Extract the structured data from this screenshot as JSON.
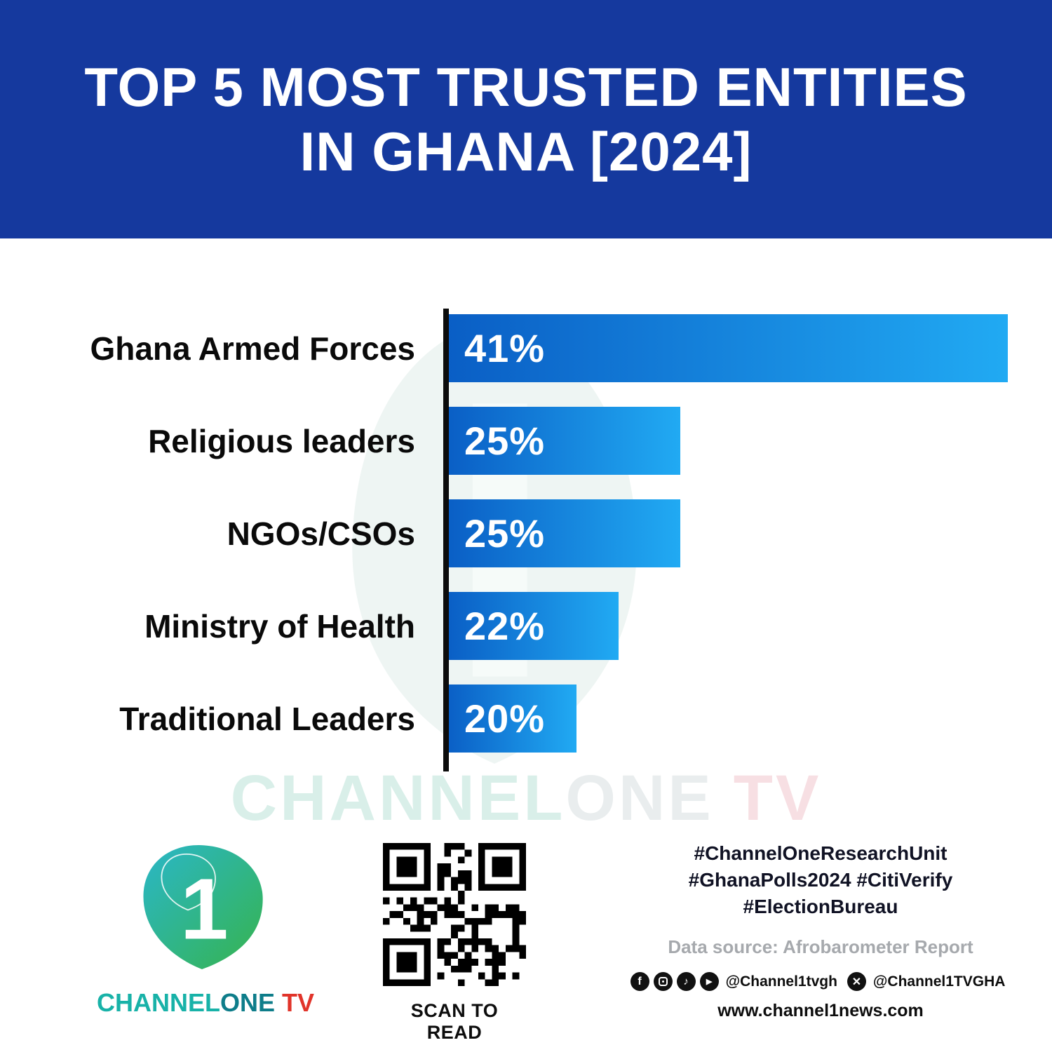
{
  "header": {
    "title_line1": "TOP 5 MOST TRUSTED ENTITIES",
    "title_line2": "IN GHANA [2024]"
  },
  "chart_data": {
    "type": "bar",
    "orientation": "horizontal",
    "title": "TOP 5 MOST TRUSTED ENTITIES IN GHANA [2024]",
    "categories": [
      "Ghana Armed Forces",
      "Religious leaders",
      "NGOs/CSOs",
      "Ministry of Health",
      "Traditional Leaders"
    ],
    "values": [
      41,
      25,
      25,
      22,
      20
    ],
    "value_labels": [
      "41%",
      "25%",
      "25%",
      "22%",
      "20%"
    ],
    "unit": "%",
    "grid": false,
    "legend": "none",
    "axis_style": "single black vertical baseline on left, no ticks, no gridlines",
    "bar_gradient": [
      "#0a5ec5",
      "#21aaf3"
    ],
    "bar_widths_pct": [
      92.7,
      38.6,
      38.6,
      28.5,
      21.5
    ]
  },
  "watermark": {
    "part1": "CHANNEL",
    "part2": "ONE",
    "part3": "TV"
  },
  "footer": {
    "brand_channel": "CHANNEL",
    "brand_one": "ONE",
    "brand_tv": "TV",
    "qr_caption": "SCAN TO READ",
    "hashtags_line1": "#ChannelOneResearchUnit",
    "hashtags_line2": "#GhanaPolls2024 #CitiVerify",
    "hashtags_line3": "#ElectionBureau",
    "data_source": "Data source: Afrobarometer Report",
    "social_handle_1": "@Channel1tvgh",
    "social_handle_2": "@Channel1TVGHA",
    "website": "www.channel1news.com",
    "colors": {
      "header_bg": "#15399e",
      "brand_teal": "#18b2a8",
      "brand_dark_teal": "#0e7d8a",
      "brand_red": "#e1342a"
    }
  }
}
